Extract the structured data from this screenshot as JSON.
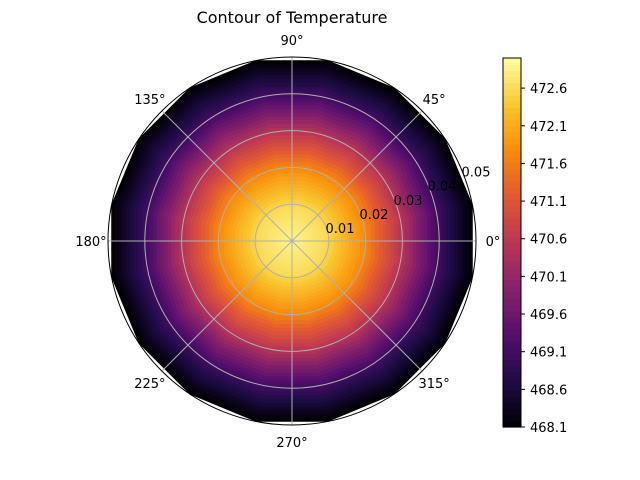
{
  "chart_data": {
    "type": "heatmap",
    "projection": "polar",
    "title": "Contour of Temperature",
    "theta_ticks": [
      "0°",
      "45°",
      "90°",
      "135°",
      "180°",
      "225°",
      "270°",
      "315°"
    ],
    "theta_tick_degrees": [
      0,
      45,
      90,
      135,
      180,
      225,
      270,
      315
    ],
    "r_ticks": [
      0.01,
      0.02,
      0.03,
      0.04,
      0.05
    ],
    "r_tick_labels": [
      "0.01",
      "0.02",
      "0.03",
      "0.04",
      "0.05"
    ],
    "rlim": [
      0,
      0.05
    ],
    "grid": true,
    "theta_samples": 16,
    "field": {
      "description_of_profile": "radially symmetric, maximum at center decreasing toward outer radius",
      "r": [
        0.0,
        0.01,
        0.02,
        0.03,
        0.04,
        0.05
      ],
      "value": [
        472.9,
        472.6,
        471.8,
        470.6,
        469.2,
        468.1
      ]
    },
    "colormap": "inferno",
    "colorbar": {
      "min": 468.1,
      "max": 473.0,
      "ticks": [
        468.1,
        468.6,
        469.1,
        469.6,
        470.1,
        470.6,
        471.1,
        471.6,
        472.1,
        472.6
      ],
      "tick_labels": [
        "468.1",
        "468.6",
        "469.1",
        "469.6",
        "470.1",
        "470.6",
        "471.1",
        "471.6",
        "472.1",
        "472.6"
      ]
    }
  }
}
